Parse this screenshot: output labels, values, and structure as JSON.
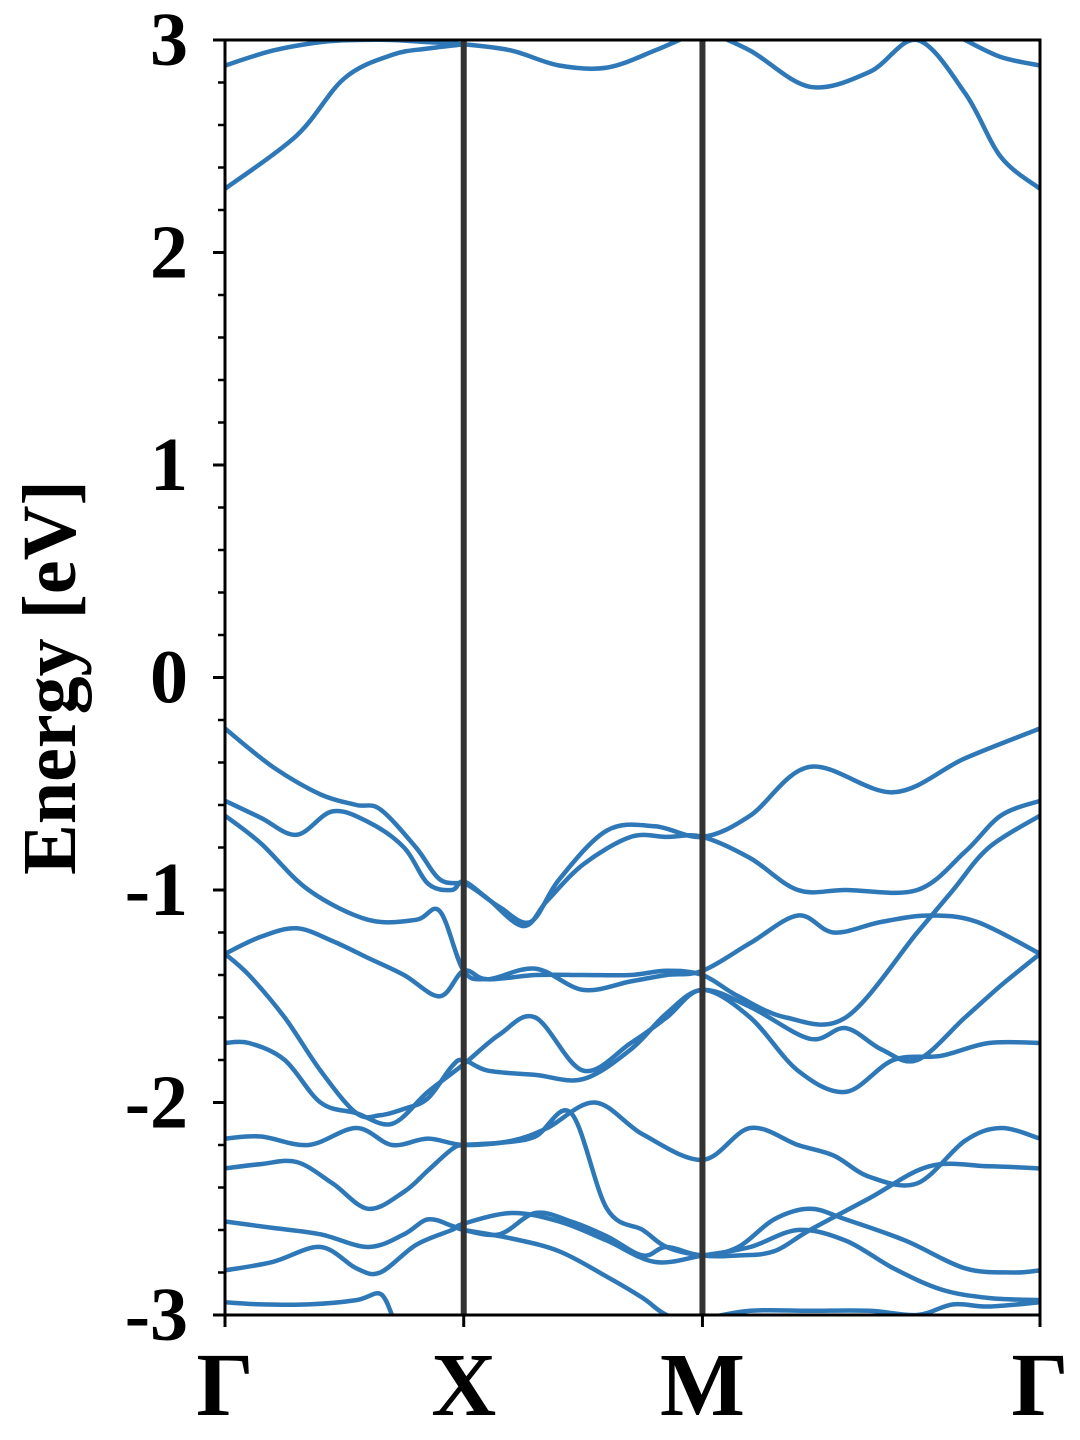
{
  "chart_data": {
    "type": "line",
    "title": "",
    "ylabel": "Energy [eV]",
    "xlabel": "",
    "ylim": [
      -3,
      3
    ],
    "y_ticks": [
      "3",
      "2",
      "1",
      "0",
      "-1",
      "-2",
      "-3"
    ],
    "y_tick_values": [
      3,
      2,
      1,
      0,
      -1,
      -2,
      -3
    ],
    "x_ticks": [
      "Γ",
      "X",
      "M",
      "Γ"
    ],
    "x_tick_positions": [
      0,
      1,
      2,
      3.414
    ],
    "xlim": [
      0,
      3.414
    ],
    "vertical_lines_at": [
      1,
      2
    ],
    "grid": false,
    "colors": {
      "band": "#2e78b7",
      "kpoint_line": "#333333",
      "axis": "#000000"
    },
    "series": [
      {
        "x": [
          0,
          0.2,
          0.4,
          0.55,
          0.7,
          0.85,
          1.0,
          1.2,
          1.4,
          1.6,
          1.8,
          2.0
        ],
        "values": [
          2.88,
          2.95,
          2.99,
          3.0,
          3.0,
          2.99,
          2.98,
          2.95,
          2.88,
          2.87,
          2.95,
          3.05
        ]
      },
      {
        "x": [
          0,
          0.3,
          0.5,
          0.7,
          0.85,
          1.0
        ],
        "values": [
          2.3,
          2.55,
          2.82,
          2.93,
          2.96,
          2.98
        ]
      },
      {
        "x": [
          2.0,
          2.2,
          2.45,
          2.7,
          2.9,
          3.1,
          3.25,
          3.414
        ],
        "values": [
          3.05,
          2.95,
          2.78,
          2.85,
          3.0,
          2.75,
          2.45,
          2.3
        ]
      },
      {
        "x": [
          3.1,
          3.25,
          3.414
        ],
        "values": [
          3.0,
          2.92,
          2.88
        ]
      },
      {
        "x": [
          0,
          0.2,
          0.4,
          0.55,
          0.65,
          0.8,
          0.9,
          1.0,
          1.05,
          1.15,
          1.28,
          1.4,
          1.6,
          1.8,
          2.0,
          2.2,
          2.45,
          2.8,
          3.1,
          3.414
        ],
        "values": [
          -0.24,
          -0.42,
          -0.55,
          -0.6,
          -0.62,
          -0.8,
          -0.95,
          -0.97,
          -1.0,
          -1.08,
          -1.15,
          -0.95,
          -0.72,
          -0.7,
          -0.75,
          -0.65,
          -0.42,
          -0.54,
          -0.38,
          -0.24
        ]
      },
      {
        "x": [
          0,
          0.15,
          0.3,
          0.45,
          0.6,
          0.75,
          0.85,
          0.95,
          1.0,
          1.1,
          1.25,
          1.35,
          1.5,
          1.7,
          1.85,
          2.0,
          2.2,
          2.4,
          2.6,
          2.9,
          3.1,
          3.25,
          3.414
        ],
        "values": [
          -0.58,
          -0.66,
          -0.74,
          -0.63,
          -0.68,
          -0.8,
          -0.97,
          -1.0,
          -0.96,
          -1.04,
          -1.17,
          -1.05,
          -0.88,
          -0.75,
          -0.75,
          -0.75,
          -0.85,
          -1.0,
          -1.0,
          -1.0,
          -0.82,
          -0.65,
          -0.58
        ]
      },
      {
        "x": [
          0,
          0.15,
          0.35,
          0.6,
          0.8,
          0.9,
          1.0,
          1.1,
          1.3,
          1.5,
          1.7,
          1.85,
          2.0,
          2.15,
          2.35,
          2.6,
          2.9,
          3.05,
          3.2,
          3.414
        ],
        "values": [
          -0.65,
          -0.78,
          -1.0,
          -1.14,
          -1.14,
          -1.1,
          -1.38,
          -1.42,
          -1.4,
          -1.4,
          -1.4,
          -1.38,
          -1.4,
          -1.5,
          -1.6,
          -1.6,
          -1.2,
          -1.0,
          -0.8,
          -0.65
        ]
      },
      {
        "x": [
          0,
          0.15,
          0.3,
          0.45,
          0.6,
          0.75,
          0.9,
          1.0,
          1.1,
          1.3,
          1.5,
          1.7,
          1.85,
          2.0,
          2.2,
          2.4,
          2.55,
          2.75,
          2.95,
          3.15,
          3.414
        ],
        "values": [
          -1.3,
          -1.22,
          -1.18,
          -1.24,
          -1.32,
          -1.4,
          -1.5,
          -1.38,
          -1.42,
          -1.37,
          -1.47,
          -1.43,
          -1.4,
          -1.38,
          -1.25,
          -1.12,
          -1.2,
          -1.15,
          -1.12,
          -1.15,
          -1.3
        ]
      },
      {
        "x": [
          0,
          0.1,
          0.25,
          0.4,
          0.55,
          0.65,
          0.75,
          0.85,
          0.95,
          1.0,
          1.1,
          1.3,
          1.5,
          1.7,
          1.85,
          2.0,
          2.2,
          2.45,
          2.6,
          2.75,
          2.9,
          3.1,
          3.25,
          3.414
        ],
        "values": [
          -1.3,
          -1.4,
          -1.6,
          -1.85,
          -2.05,
          -2.06,
          -2.03,
          -1.98,
          -1.83,
          -1.8,
          -1.85,
          -1.87,
          -1.89,
          -1.75,
          -1.58,
          -1.47,
          -1.55,
          -1.7,
          -1.65,
          -1.75,
          -1.8,
          -1.6,
          -1.45,
          -1.3
        ]
      },
      {
        "x": [
          0,
          0.1,
          0.25,
          0.4,
          0.55,
          0.7,
          0.85,
          1.0,
          1.15,
          1.3,
          1.5,
          1.7,
          1.85,
          2.0,
          2.2,
          2.4,
          2.6,
          2.8,
          3.0,
          3.2,
          3.414
        ],
        "values": [
          -1.72,
          -1.72,
          -1.8,
          -2.0,
          -2.05,
          -2.1,
          -1.95,
          -1.82,
          -1.68,
          -1.6,
          -1.85,
          -1.72,
          -1.6,
          -1.47,
          -1.6,
          -1.85,
          -1.95,
          -1.8,
          -1.78,
          -1.72,
          -1.72
        ]
      },
      {
        "x": [
          0,
          0.15,
          0.35,
          0.55,
          0.7,
          0.85,
          1.0,
          1.2,
          1.35,
          1.55,
          1.75,
          2.0,
          2.2,
          2.4,
          2.55,
          2.7,
          2.9,
          3.1,
          3.25,
          3.414
        ],
        "values": [
          -2.17,
          -2.16,
          -2.2,
          -2.12,
          -2.2,
          -2.17,
          -2.2,
          -2.18,
          -2.12,
          -2.0,
          -2.15,
          -2.27,
          -2.12,
          -2.2,
          -2.25,
          -2.35,
          -2.38,
          -2.18,
          -2.12,
          -2.17
        ]
      },
      {
        "x": [
          0,
          0.15,
          0.3,
          0.45,
          0.6,
          0.75,
          0.85,
          0.95,
          1.0,
          1.15,
          1.3,
          1.45,
          1.6,
          1.75,
          1.85,
          2.0,
          2.15,
          2.3,
          2.45,
          2.7,
          2.95,
          3.2,
          3.414
        ],
        "values": [
          -2.31,
          -2.29,
          -2.28,
          -2.38,
          -2.5,
          -2.42,
          -2.32,
          -2.22,
          -2.2,
          -2.19,
          -2.16,
          -2.05,
          -2.5,
          -2.6,
          -2.68,
          -2.72,
          -2.72,
          -2.7,
          -2.6,
          -2.45,
          -2.3,
          -2.3,
          -2.31
        ]
      },
      {
        "x": [
          0,
          0.2,
          0.4,
          0.6,
          0.75,
          0.85,
          0.95,
          1.0,
          1.15,
          1.3,
          1.45,
          1.6,
          1.75,
          1.85,
          2.0,
          2.15,
          2.3,
          2.45,
          2.6,
          2.85,
          3.1,
          3.3,
          3.414
        ],
        "values": [
          -2.56,
          -2.59,
          -2.62,
          -2.68,
          -2.62,
          -2.55,
          -2.58,
          -2.6,
          -2.62,
          -2.52,
          -2.56,
          -2.63,
          -2.72,
          -2.68,
          -2.72,
          -2.68,
          -2.55,
          -2.5,
          -2.55,
          -2.65,
          -2.78,
          -2.8,
          -2.79
        ]
      },
      {
        "x": [
          0,
          0.2,
          0.4,
          0.55,
          0.65,
          0.8,
          0.95,
          1.0,
          1.2,
          1.4,
          1.6,
          1.8,
          2.0,
          2.2,
          2.4,
          2.6,
          2.8,
          3.0,
          3.2,
          3.414
        ],
        "values": [
          -2.79,
          -2.75,
          -2.68,
          -2.78,
          -2.8,
          -2.67,
          -2.6,
          -2.57,
          -2.52,
          -2.56,
          -2.65,
          -2.75,
          -2.72,
          -2.68,
          -2.6,
          -2.65,
          -2.78,
          -2.88,
          -2.92,
          -2.93
        ]
      },
      {
        "x": [
          0,
          0.15,
          0.35,
          0.55,
          0.65,
          0.7
        ],
        "values": [
          -2.94,
          -2.95,
          -2.95,
          -2.93,
          -2.9,
          -3.0
        ]
      },
      {
        "x": [
          1.0,
          1.2,
          1.4,
          1.6,
          1.75,
          1.85,
          2.0
        ],
        "values": [
          -2.6,
          -2.64,
          -2.7,
          -2.82,
          -2.92,
          -3.0,
          -3.05
        ]
      },
      {
        "x": [
          2.0,
          2.2,
          2.45,
          2.7,
          2.9,
          3.05,
          3.2,
          3.414
        ],
        "values": [
          -3.02,
          -2.98,
          -2.98,
          -2.98,
          -3.0,
          -2.95,
          -2.96,
          -2.94
        ]
      }
    ]
  }
}
